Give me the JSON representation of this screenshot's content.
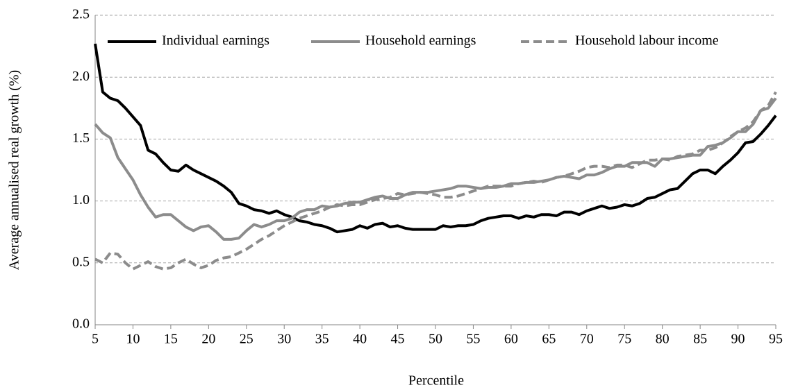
{
  "chart_data": {
    "type": "line",
    "x_label": "Percentile",
    "y_label": "Average annualised real growth (%)",
    "x": [
      5,
      6,
      7,
      8,
      9,
      10,
      11,
      12,
      13,
      14,
      15,
      16,
      17,
      18,
      19,
      20,
      21,
      22,
      23,
      24,
      25,
      26,
      27,
      28,
      29,
      30,
      31,
      32,
      33,
      34,
      35,
      36,
      37,
      38,
      39,
      40,
      41,
      42,
      43,
      44,
      45,
      46,
      47,
      48,
      49,
      50,
      51,
      52,
      53,
      54,
      55,
      56,
      57,
      58,
      59,
      60,
      61,
      62,
      63,
      64,
      65,
      66,
      67,
      68,
      69,
      70,
      71,
      72,
      73,
      74,
      75,
      76,
      77,
      78,
      79,
      80,
      81,
      82,
      83,
      84,
      85,
      86,
      87,
      88,
      89,
      90,
      91,
      92,
      93,
      94,
      95
    ],
    "series": [
      {
        "name": "Individual earnings",
        "color": "#000000",
        "dashed": false,
        "values": [
          2.27,
          1.88,
          1.83,
          1.81,
          1.75,
          1.68,
          1.61,
          1.41,
          1.38,
          1.31,
          1.25,
          1.24,
          1.29,
          1.25,
          1.22,
          1.19,
          1.16,
          1.12,
          1.07,
          0.98,
          0.96,
          0.93,
          0.92,
          0.9,
          0.92,
          0.89,
          0.87,
          0.84,
          0.83,
          0.81,
          0.8,
          0.78,
          0.75,
          0.76,
          0.77,
          0.8,
          0.78,
          0.81,
          0.82,
          0.79,
          0.8,
          0.78,
          0.77,
          0.77,
          0.77,
          0.77,
          0.8,
          0.79,
          0.8,
          0.8,
          0.81,
          0.84,
          0.86,
          0.87,
          0.88,
          0.88,
          0.86,
          0.88,
          0.87,
          0.89,
          0.89,
          0.88,
          0.91,
          0.91,
          0.89,
          0.92,
          0.94,
          0.96,
          0.94,
          0.95,
          0.97,
          0.96,
          0.98,
          1.02,
          1.03,
          1.06,
          1.09,
          1.1,
          1.16,
          1.22,
          1.25,
          1.25,
          1.22,
          1.28,
          1.33,
          1.39,
          1.47,
          1.48,
          1.54,
          1.61,
          1.69
        ]
      },
      {
        "name": "Household earnings",
        "color": "#8c8c8c",
        "dashed": false,
        "values": [
          1.62,
          1.55,
          1.51,
          1.35,
          1.26,
          1.17,
          1.05,
          0.95,
          0.87,
          0.89,
          0.89,
          0.84,
          0.79,
          0.76,
          0.79,
          0.8,
          0.75,
          0.69,
          0.69,
          0.7,
          0.76,
          0.81,
          0.79,
          0.81,
          0.84,
          0.84,
          0.86,
          0.91,
          0.93,
          0.93,
          0.96,
          0.95,
          0.96,
          0.98,
          0.99,
          0.99,
          1.01,
          1.03,
          1.04,
          1.02,
          1.02,
          1.05,
          1.07,
          1.07,
          1.07,
          1.08,
          1.09,
          1.1,
          1.12,
          1.12,
          1.11,
          1.1,
          1.11,
          1.11,
          1.12,
          1.14,
          1.14,
          1.15,
          1.15,
          1.16,
          1.17,
          1.19,
          1.2,
          1.19,
          1.18,
          1.21,
          1.21,
          1.23,
          1.26,
          1.28,
          1.28,
          1.31,
          1.31,
          1.31,
          1.28,
          1.34,
          1.34,
          1.35,
          1.36,
          1.37,
          1.37,
          1.44,
          1.45,
          1.47,
          1.51,
          1.56,
          1.56,
          1.62,
          1.73,
          1.75,
          1.83
        ]
      },
      {
        "name": "Household labour income",
        "color": "#8c8c8c",
        "dashed": true,
        "values": [
          0.53,
          0.5,
          0.58,
          0.57,
          0.5,
          0.45,
          0.48,
          0.51,
          0.47,
          0.45,
          0.46,
          0.5,
          0.53,
          0.49,
          0.46,
          0.48,
          0.52,
          0.54,
          0.55,
          0.58,
          0.61,
          0.65,
          0.69,
          0.72,
          0.76,
          0.8,
          0.83,
          0.86,
          0.88,
          0.9,
          0.92,
          0.95,
          0.97,
          0.96,
          0.97,
          0.97,
          0.99,
          1.01,
          1.02,
          1.03,
          1.06,
          1.05,
          1.06,
          1.07,
          1.06,
          1.05,
          1.03,
          1.03,
          1.04,
          1.06,
          1.08,
          1.1,
          1.12,
          1.12,
          1.12,
          1.12,
          1.14,
          1.15,
          1.16,
          1.15,
          1.17,
          1.19,
          1.2,
          1.22,
          1.24,
          1.27,
          1.28,
          1.28,
          1.27,
          1.29,
          1.29,
          1.27,
          1.3,
          1.33,
          1.33,
          1.34,
          1.33,
          1.36,
          1.37,
          1.38,
          1.41,
          1.41,
          1.43,
          1.47,
          1.52,
          1.56,
          1.59,
          1.64,
          1.73,
          1.77,
          1.88
        ]
      }
    ],
    "xlim": [
      5,
      95
    ],
    "xticks": [
      5,
      10,
      15,
      20,
      25,
      30,
      35,
      40,
      45,
      50,
      55,
      60,
      65,
      70,
      75,
      80,
      85,
      90,
      95
    ],
    "ylim": [
      0,
      2.5
    ],
    "yticks": [
      {
        "value": 0,
        "label": "0.0"
      },
      0.5,
      {
        "value": 1,
        "label": "1.0"
      },
      1.5,
      {
        "value": 2,
        "label": "2.0"
      },
      2.5
    ],
    "grid": true,
    "legend": "top"
  }
}
